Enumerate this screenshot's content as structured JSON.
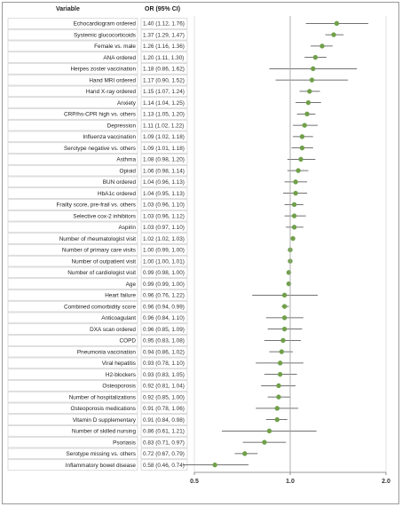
{
  "chart_data": {
    "type": "forest",
    "columns": {
      "variable": "Variable",
      "or": "OR (95% CI)"
    },
    "xscale": "log",
    "xlim": [
      0.5,
      2.0
    ],
    "xticks": [
      0.5,
      1.0,
      2.0
    ],
    "xtick_labels": [
      "0.5",
      "1.0",
      "2.0"
    ],
    "reference_line": 1.0,
    "marker_color": "#70a04a",
    "rows": [
      {
        "label": "Echocardiogram ordered",
        "or_text": "1.40 (1.12, 1.76)",
        "or": 1.4,
        "lo": 1.12,
        "hi": 1.76
      },
      {
        "label": "Systemic glucocorticoids",
        "or_text": "1.37 (1.29, 1.47)",
        "or": 1.37,
        "lo": 1.29,
        "hi": 1.47
      },
      {
        "label": "Female vs. male",
        "or_text": "1.26 (1.16, 1.36)",
        "or": 1.26,
        "lo": 1.16,
        "hi": 1.36
      },
      {
        "label": "ANA ordered",
        "or_text": "1.20 (1.11, 1.30)",
        "or": 1.2,
        "lo": 1.11,
        "hi": 1.3
      },
      {
        "label": "Herpes zoster vaccination",
        "or_text": "1.18 (0.86, 1.62)",
        "or": 1.18,
        "lo": 0.86,
        "hi": 1.62
      },
      {
        "label": "Hand MRI ordered",
        "or_text": "1.17 (0.90, 1.52)",
        "or": 1.17,
        "lo": 0.9,
        "hi": 1.52
      },
      {
        "label": "Hand X-ray ordered",
        "or_text": "1.15 (1.07, 1.24)",
        "or": 1.15,
        "lo": 1.07,
        "hi": 1.24
      },
      {
        "label": "Anxiety",
        "or_text": "1.14 (1.04, 1.25)",
        "or": 1.14,
        "lo": 1.04,
        "hi": 1.25
      },
      {
        "label": "CRP/hs-CPR high vs. others",
        "or_text": "1.13 (1.05, 1.20)",
        "or": 1.13,
        "lo": 1.05,
        "hi": 1.2
      },
      {
        "label": "Depression",
        "or_text": "1.11 (1.02, 1.22)",
        "or": 1.11,
        "lo": 1.02,
        "hi": 1.22
      },
      {
        "label": "Influenza vaccination",
        "or_text": "1.09 (1.02, 1.18)",
        "or": 1.09,
        "lo": 1.02,
        "hi": 1.18
      },
      {
        "label": "Serotype negative vs. others",
        "or_text": "1.09 (1.01, 1.18)",
        "or": 1.09,
        "lo": 1.01,
        "hi": 1.18
      },
      {
        "label": "Asthma",
        "or_text": "1.08 (0.98, 1.20)",
        "or": 1.08,
        "lo": 0.98,
        "hi": 1.2
      },
      {
        "label": "Opioid",
        "or_text": "1.06 (0.98, 1.14)",
        "or": 1.06,
        "lo": 0.98,
        "hi": 1.14
      },
      {
        "label": "BUN ordered",
        "or_text": "1.04 (0.96, 1.13)",
        "or": 1.04,
        "lo": 0.96,
        "hi": 1.13
      },
      {
        "label": "HbA1c ordered",
        "or_text": "1.04 (0.95, 1.13)",
        "or": 1.04,
        "lo": 0.95,
        "hi": 1.13
      },
      {
        "label": "Frailty score, pre-frail vs. others",
        "or_text": "1.03 (0.96, 1.10)",
        "or": 1.03,
        "lo": 0.96,
        "hi": 1.1
      },
      {
        "label": "Selective cox-2 inhibitors",
        "or_text": "1.03 (0.96, 1.12)",
        "or": 1.03,
        "lo": 0.96,
        "hi": 1.12
      },
      {
        "label": "Aspirin",
        "or_text": "1.03 (0.97, 1.10)",
        "or": 1.03,
        "lo": 0.97,
        "hi": 1.1
      },
      {
        "label": "Number of rheumatologist visit",
        "or_text": "1.02 (1.02, 1.03)",
        "or": 1.02,
        "lo": 1.02,
        "hi": 1.03
      },
      {
        "label": "Number of primary care visits",
        "or_text": "1.00 (0.99, 1.00)",
        "or": 1.0,
        "lo": 0.99,
        "hi": 1.0
      },
      {
        "label": "Number of outpatient visit",
        "or_text": "1.00 (1.00, 1.01)",
        "or": 1.0,
        "lo": 1.0,
        "hi": 1.01
      },
      {
        "label": "Number of cardiologist visit",
        "or_text": "0.99 (0.98, 1.00)",
        "or": 0.99,
        "lo": 0.98,
        "hi": 1.0
      },
      {
        "label": "Age",
        "or_text": "0.99 (0.99, 1.00)",
        "or": 0.99,
        "lo": 0.99,
        "hi": 1.0
      },
      {
        "label": "Heart failure",
        "or_text": "0.96 (0.76, 1.22)",
        "or": 0.96,
        "lo": 0.76,
        "hi": 1.22
      },
      {
        "label": "Combined comorbidity score",
        "or_text": "0.96 (0.94, 0.99)",
        "or": 0.96,
        "lo": 0.94,
        "hi": 0.99
      },
      {
        "label": "Anticoagulant",
        "or_text": "0.96 (0.84, 1.10)",
        "or": 0.96,
        "lo": 0.84,
        "hi": 1.1
      },
      {
        "label": "DXA scan ordered",
        "or_text": "0.96 (0.85, 1.09)",
        "or": 0.96,
        "lo": 0.85,
        "hi": 1.09
      },
      {
        "label": "COPD",
        "or_text": "0.95 (0.83, 1.08)",
        "or": 0.95,
        "lo": 0.83,
        "hi": 1.08
      },
      {
        "label": "Pneumonia vaccination",
        "or_text": "0.94 (0.86, 1.02)",
        "or": 0.94,
        "lo": 0.86,
        "hi": 1.02
      },
      {
        "label": "Viral hepatitis",
        "or_text": "0.93 (0.78, 1.10)",
        "or": 0.93,
        "lo": 0.78,
        "hi": 1.1
      },
      {
        "label": "H2-blockers",
        "or_text": "0.93 (0.83, 1.05)",
        "or": 0.93,
        "lo": 0.83,
        "hi": 1.05
      },
      {
        "label": "Osteoporosis",
        "or_text": "0.92 (0.81, 1.04)",
        "or": 0.92,
        "lo": 0.81,
        "hi": 1.04
      },
      {
        "label": "Number of hospitalizations",
        "or_text": "0.92 (0.85, 1.00)",
        "or": 0.92,
        "lo": 0.85,
        "hi": 1.0
      },
      {
        "label": "Osteoporosis medications",
        "or_text": "0.91 (0.78, 1.06)",
        "or": 0.91,
        "lo": 0.78,
        "hi": 1.06
      },
      {
        "label": "Vitamin D supplementary",
        "or_text": "0.91 (0.84, 0.98)",
        "or": 0.91,
        "lo": 0.84,
        "hi": 0.98
      },
      {
        "label": "Number of skilled nursing",
        "or_text": "0.86 (0.61, 1.21)",
        "or": 0.86,
        "lo": 0.61,
        "hi": 1.21
      },
      {
        "label": "Psoriasis",
        "or_text": "0.83 (0.71, 0.97)",
        "or": 0.83,
        "lo": 0.71,
        "hi": 0.97
      },
      {
        "label": "Serotype missing vs. others",
        "or_text": "0.72 (0.67, 0.79)",
        "or": 0.72,
        "lo": 0.67,
        "hi": 0.79
      },
      {
        "label": "Inflammatory bowel disease",
        "or_text": "0.58 (0.46, 0.74)",
        "or": 0.58,
        "lo": 0.46,
        "hi": 0.74
      }
    ]
  }
}
